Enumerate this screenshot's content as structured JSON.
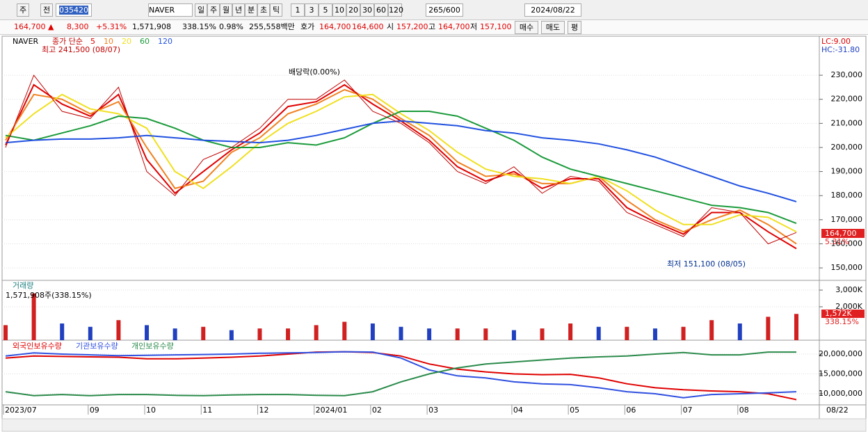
{
  "toolbar": {
    "market": "주",
    "prev": "전",
    "code": "035420",
    "name": "NAVER",
    "periods": [
      "일",
      "주",
      "월",
      "년",
      "분",
      "초",
      "틱"
    ],
    "intervals": [
      "1",
      "3",
      "5",
      "10",
      "20",
      "30",
      "60",
      "120"
    ],
    "count": "265",
    "max": "/600",
    "date": "2024/08/22"
  },
  "quote": {
    "price": "164,700 ▲",
    "change": "8,300",
    "rate": "+5.31%",
    "volume": "1,571,908",
    "volume_rate": "338.15%",
    "turnover": "0.98%",
    "amount": "255,558백만",
    "bid_label": "호가",
    "ask": "164,700",
    "bid": "164,600",
    "open_label": "시",
    "open": "157,200",
    "high_label": "고",
    "high": "164,700",
    "low_label": "저",
    "low": "157,100",
    "buy": "매수",
    "sell": "매도",
    "eval": "평"
  },
  "chart_data": [
    {
      "type": "line",
      "title": "NAVER",
      "legend_prefix": "종가 단순",
      "ylim": [
        145700,
        246200
      ],
      "yticks": [
        {
          "value": 150000,
          "label": "150,000"
        },
        {
          "value": 160000,
          "label": "160,000"
        },
        {
          "value": 170000,
          "label": "170,000"
        },
        {
          "value": 180000,
          "label": "180,000"
        },
        {
          "value": 190000,
          "label": "190,000"
        },
        {
          "value": 200000,
          "label": "200,000"
        },
        {
          "value": 210000,
          "label": "210,000"
        },
        {
          "value": 220000,
          "label": "220,000"
        },
        {
          "value": 230000,
          "label": "230,000"
        }
      ],
      "annotations": {
        "high": "최고 241,500 (08/07)",
        "dividend": "배당락(0.00%)",
        "low": "최저 151,100 (08/05)",
        "lc": "LC:9.00",
        "hc": "HC:-31.80",
        "last": "164,700",
        "last_rate": "5.31%"
      },
      "series": [
        {
          "name": "5",
          "color": "#e00000",
          "values": [
            201000,
            226000,
            218000,
            213000,
            222000,
            195000,
            181000,
            190000,
            199000,
            206000,
            217000,
            219000,
            226000,
            218000,
            211000,
            203000,
            192000,
            186000,
            190000,
            183000,
            187000,
            187000,
            175000,
            169000,
            164000,
            173000,
            173000,
            165000,
            158000
          ]
        },
        {
          "name": "10",
          "color": "#f08020",
          "values": [
            203000,
            222000,
            220000,
            214000,
            219000,
            200000,
            183000,
            186000,
            198000,
            204000,
            214000,
            218000,
            224000,
            220000,
            212000,
            205000,
            194000,
            188000,
            189000,
            185000,
            185000,
            188000,
            178000,
            170000,
            165000,
            170000,
            174000,
            168000,
            160000
          ]
        },
        {
          "name": "20",
          "color": "#f0e020",
          "values": [
            204000,
            214000,
            222000,
            216000,
            214000,
            208000,
            190000,
            183000,
            192000,
            202000,
            210000,
            215000,
            221000,
            222000,
            214000,
            207000,
            198000,
            191000,
            188000,
            187000,
            185000,
            188000,
            182000,
            174000,
            168000,
            168000,
            172000,
            171000,
            165000
          ]
        },
        {
          "name": "60",
          "color": "#1a9a3a",
          "values": [
            205000,
            203000,
            206000,
            209000,
            213000,
            212000,
            208000,
            203000,
            200000,
            200000,
            202000,
            201000,
            204000,
            210000,
            215000,
            215000,
            213000,
            208000,
            203000,
            196000,
            191000,
            188000,
            185000,
            182000,
            179000,
            176000,
            175000,
            173000,
            168500
          ]
        },
        {
          "name": "120",
          "color": "#2050e0",
          "values": [
            202000,
            203000,
            203500,
            203500,
            204000,
            205000,
            204000,
            203000,
            202500,
            202000,
            203000,
            205000,
            207500,
            210000,
            211000,
            210000,
            209000,
            207000,
            206000,
            204000,
            203000,
            201500,
            199000,
            196000,
            192000,
            188000,
            184000,
            181000,
            177500
          ]
        },
        {
          "name": "종가",
          "color": "#c00000",
          "values": [
            200000,
            230000,
            215000,
            212000,
            225000,
            190000,
            180000,
            195000,
            200000,
            208000,
            220000,
            220000,
            228000,
            215000,
            210000,
            202000,
            190000,
            185000,
            192000,
            181000,
            188000,
            186000,
            173000,
            168000,
            163000,
            175000,
            173000,
            160000,
            164700
          ]
        }
      ]
    },
    {
      "type": "bar",
      "title": "거래량",
      "subtitle": "1,571,908주(338.15%)",
      "ylim": [
        0,
        3500
      ],
      "yticks": [
        {
          "value": 2000,
          "label": "2,000K"
        },
        {
          "value": 3000,
          "label": "3,000K"
        }
      ],
      "annotations": {
        "last": "1,572K",
        "last_rate": "338.15%"
      },
      "values": [
        900,
        2800,
        1000,
        800,
        1200,
        900,
        700,
        800,
        600,
        700,
        700,
        900,
        1100,
        1000,
        800,
        700,
        700,
        700,
        600,
        700,
        1000,
        800,
        800,
        700,
        800,
        1200,
        1000,
        1400,
        1572
      ]
    },
    {
      "type": "line",
      "ylim": [
        7190000,
        23330000
      ],
      "yticks": [
        {
          "value": 10000000,
          "label": "10,000,000"
        },
        {
          "value": 15000000,
          "label": "15,000,000"
        },
        {
          "value": 20000000,
          "label": "20,000,000"
        }
      ],
      "categories": [
        "2023/07",
        null,
        null,
        "09",
        null,
        "10",
        null,
        "11",
        null,
        "12",
        null,
        "2024/01",
        null,
        "02",
        null,
        "03",
        null,
        null,
        "04",
        null,
        "05",
        null,
        "06",
        null,
        "07",
        null,
        "08",
        null,
        null
      ],
      "last_date": "08/22",
      "series": [
        {
          "name": "외국인보유수량",
          "color": "#e00000",
          "values": [
            19000000,
            19500000,
            19400000,
            19300000,
            19200000,
            18800000,
            18800000,
            19000000,
            19200000,
            19500000,
            20000000,
            20500000,
            20600000,
            20400000,
            19500000,
            17500000,
            16200000,
            15500000,
            15000000,
            14800000,
            14900000,
            14000000,
            12500000,
            11500000,
            11000000,
            10700000,
            10500000,
            10000000,
            8500000
          ]
        },
        {
          "name": "기관보유수량",
          "color": "#3050e0",
          "values": [
            19500000,
            20300000,
            20000000,
            19800000,
            19600000,
            19700000,
            19800000,
            19900000,
            20000000,
            20200000,
            20300000,
            20400000,
            20600000,
            20500000,
            19000000,
            16000000,
            14500000,
            14000000,
            13000000,
            12500000,
            12300000,
            11500000,
            10500000,
            10000000,
            9000000,
            9800000,
            10000000,
            10200000,
            10500000
          ]
        },
        {
          "name": "개인보유수량",
          "color": "#2a8a4a",
          "values": [
            10500000,
            9500000,
            9800000,
            9500000,
            9800000,
            9800000,
            9600000,
            9500000,
            9700000,
            9800000,
            9800000,
            9600000,
            9500000,
            10500000,
            13000000,
            15000000,
            16500000,
            17500000,
            18000000,
            18500000,
            19000000,
            19300000,
            19500000,
            20000000,
            20400000,
            19800000,
            19800000,
            20500000,
            20500000
          ]
        }
      ]
    }
  ]
}
